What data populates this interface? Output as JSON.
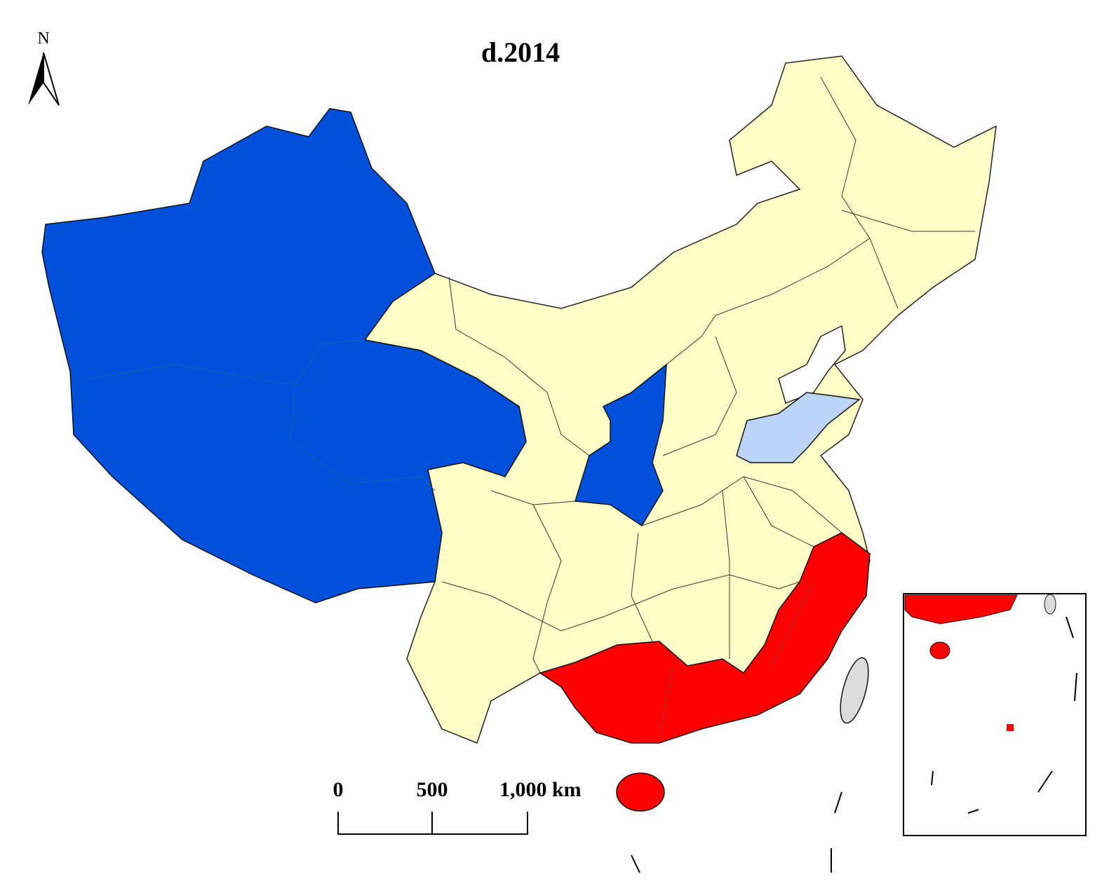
{
  "title": "d.2014",
  "north_arrow": {
    "label": "N"
  },
  "scale_bar": {
    "labels": [
      "0",
      "500",
      "1,000 km"
    ]
  }
}
